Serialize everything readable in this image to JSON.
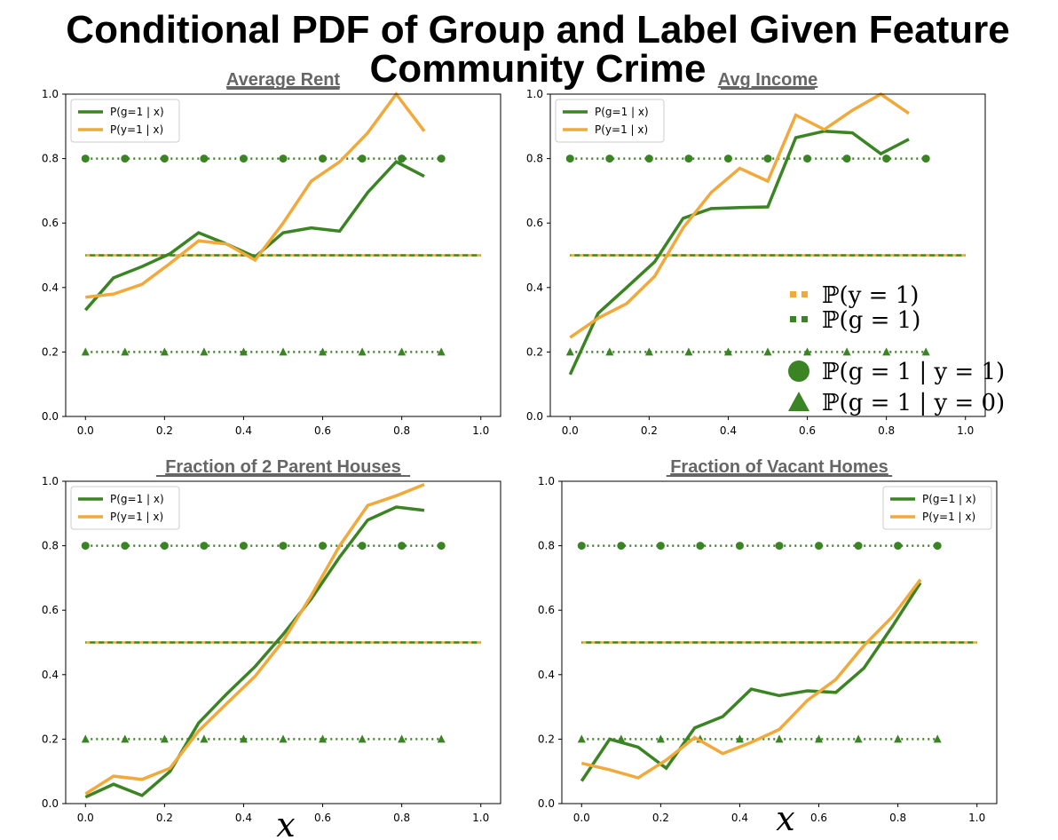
{
  "figure": {
    "title_line1": "Conditional PDF of Group and Label Given Feature",
    "title_line2": "Community Crime",
    "xlabel": "x",
    "colors": {
      "green": "#3a8424",
      "orange": "#f2a93b"
    },
    "math_legend": [
      {
        "marker": "square-orange",
        "text": "ℙ(y = 1)"
      },
      {
        "marker": "square-green",
        "text": "ℙ(g = 1)"
      },
      {
        "marker": "circle-green",
        "text": "ℙ(g = 1 | y = 1)"
      },
      {
        "marker": "triangle-green",
        "text": "ℙ(g = 1 | y = 0)"
      }
    ]
  },
  "chart_data": [
    {
      "type": "line",
      "title": "Average Rent",
      "xlim": [
        -0.05,
        1.05
      ],
      "ylim": [
        0.0,
        1.0
      ],
      "xticks": [
        "0.0",
        "0.2",
        "0.4",
        "0.6",
        "0.8",
        "1.0"
      ],
      "yticks": [
        "0.0",
        "0.2",
        "0.4",
        "0.6",
        "0.8",
        "1.0"
      ],
      "legend": [
        "P(g=1 | x)",
        "P(y=1 | x)"
      ],
      "legend_position": "top-left",
      "series": [
        {
          "name": "P(g=1 | x)",
          "x": [
            0.0,
            0.071,
            0.143,
            0.214,
            0.286,
            0.357,
            0.429,
            0.5,
            0.571,
            0.643,
            0.714,
            0.786,
            0.857
          ],
          "y": [
            0.33,
            0.43,
            0.465,
            0.505,
            0.57,
            0.535,
            0.495,
            0.57,
            0.585,
            0.575,
            0.695,
            0.79,
            0.745
          ]
        },
        {
          "name": "P(y=1 | x)",
          "x": [
            0.0,
            0.071,
            0.143,
            0.214,
            0.286,
            0.357,
            0.429,
            0.5,
            0.571,
            0.643,
            0.714,
            0.786,
            0.857
          ],
          "y": [
            0.37,
            0.38,
            0.41,
            0.475,
            0.545,
            0.535,
            0.485,
            0.6,
            0.73,
            0.79,
            0.88,
            1.0,
            0.885
          ]
        }
      ],
      "p_y1": 0.5,
      "p_g1": 0.5,
      "p_g1_y1": 0.8,
      "p_g1_y0": 0.2,
      "ref_x": [
        0.0,
        0.1,
        0.2,
        0.3,
        0.4,
        0.5,
        0.6,
        0.7,
        0.8,
        0.9
      ]
    },
    {
      "type": "line",
      "title": "Avg Income",
      "xlim": [
        -0.05,
        1.05
      ],
      "ylim": [
        0.0,
        1.0
      ],
      "xticks": [
        "0.0",
        "0.2",
        "0.4",
        "0.6",
        "0.8",
        "1.0"
      ],
      "yticks": [
        "0.0",
        "0.2",
        "0.4",
        "0.6",
        "0.8",
        "1.0"
      ],
      "legend": [
        "P(g=1 | x)",
        "P(y=1 | x)"
      ],
      "legend_position": "top-left",
      "series": [
        {
          "name": "P(g=1 | x)",
          "x": [
            0.0,
            0.071,
            0.143,
            0.214,
            0.286,
            0.357,
            0.429,
            0.5,
            0.571,
            0.643,
            0.714,
            0.786,
            0.857
          ],
          "y": [
            0.13,
            0.32,
            0.4,
            0.48,
            0.615,
            0.645,
            0.648,
            0.65,
            0.865,
            0.885,
            0.88,
            0.815,
            0.86
          ]
        },
        {
          "name": "P(y=1 | x)",
          "x": [
            0.0,
            0.071,
            0.143,
            0.214,
            0.286,
            0.357,
            0.429,
            0.5,
            0.571,
            0.643,
            0.714,
            0.786,
            0.857
          ],
          "y": [
            0.245,
            0.305,
            0.35,
            0.435,
            0.585,
            0.695,
            0.77,
            0.73,
            0.935,
            0.89,
            0.95,
            1.0,
            0.94
          ]
        }
      ],
      "p_y1": 0.5,
      "p_g1": 0.5,
      "p_g1_y1": 0.8,
      "p_g1_y0": 0.2,
      "ref_x": [
        0.0,
        0.1,
        0.2,
        0.3,
        0.4,
        0.5,
        0.6,
        0.7,
        0.8,
        0.9
      ]
    },
    {
      "type": "line",
      "title": "Fraction of 2 Parent Houses",
      "xlim": [
        -0.05,
        1.05
      ],
      "ylim": [
        0.0,
        1.0
      ],
      "xticks": [
        "0.0",
        "0.2",
        "0.4",
        "0.6",
        "0.8",
        "1.0"
      ],
      "yticks": [
        "0.0",
        "0.2",
        "0.4",
        "0.6",
        "0.8",
        "1.0"
      ],
      "legend": [
        "P(g=1 | x)",
        "P(y=1 | x)"
      ],
      "legend_position": "top-left",
      "series": [
        {
          "name": "P(g=1 | x)",
          "x": [
            0.0,
            0.071,
            0.143,
            0.214,
            0.286,
            0.357,
            0.429,
            0.5,
            0.571,
            0.643,
            0.714,
            0.786,
            0.857
          ],
          "y": [
            0.02,
            0.06,
            0.025,
            0.1,
            0.25,
            0.34,
            0.425,
            0.525,
            0.635,
            0.765,
            0.88,
            0.92,
            0.91
          ]
        },
        {
          "name": "P(y=1 | x)",
          "x": [
            0.0,
            0.071,
            0.143,
            0.214,
            0.286,
            0.357,
            0.429,
            0.5,
            0.571,
            0.643,
            0.714,
            0.786,
            0.857
          ],
          "y": [
            0.03,
            0.085,
            0.075,
            0.11,
            0.225,
            0.31,
            0.395,
            0.505,
            0.645,
            0.8,
            0.925,
            0.955,
            0.99
          ]
        }
      ],
      "p_y1": 0.5,
      "p_g1": 0.5,
      "p_g1_y1": 0.8,
      "p_g1_y0": 0.2,
      "ref_x": [
        0.0,
        0.1,
        0.2,
        0.3,
        0.4,
        0.5,
        0.6,
        0.7,
        0.8,
        0.9
      ]
    },
    {
      "type": "line",
      "title": "Fraction of Vacant Homes",
      "xlim": [
        -0.05,
        1.05
      ],
      "ylim": [
        0.0,
        1.0
      ],
      "xticks": [
        "0.0",
        "0.2",
        "0.4",
        "0.6",
        "0.8",
        "1.0"
      ],
      "yticks": [
        "0.0",
        "0.2",
        "0.4",
        "0.6",
        "0.8",
        "1.0"
      ],
      "legend": [
        "P(g=1 | x)",
        "P(y=1 | x)"
      ],
      "legend_position": "top-right",
      "series": [
        {
          "name": "P(g=1 | x)",
          "x": [
            0.0,
            0.071,
            0.143,
            0.214,
            0.286,
            0.357,
            0.429,
            0.5,
            0.571,
            0.643,
            0.714,
            0.786,
            0.857
          ],
          "y": [
            0.07,
            0.2,
            0.175,
            0.11,
            0.235,
            0.27,
            0.355,
            0.335,
            0.35,
            0.345,
            0.42,
            0.55,
            0.685
          ]
        },
        {
          "name": "P(y=1 | x)",
          "x": [
            0.0,
            0.071,
            0.143,
            0.214,
            0.286,
            0.357,
            0.429,
            0.5,
            0.571,
            0.643,
            0.714,
            0.786,
            0.857
          ],
          "y": [
            0.125,
            0.105,
            0.08,
            0.135,
            0.205,
            0.155,
            0.19,
            0.23,
            0.32,
            0.385,
            0.49,
            0.58,
            0.695
          ]
        }
      ],
      "p_y1": 0.5,
      "p_g1": 0.5,
      "p_g1_y1": 0.8,
      "p_g1_y0": 0.2,
      "ref_x": [
        0.0,
        0.1,
        0.2,
        0.3,
        0.4,
        0.5,
        0.6,
        0.7,
        0.8,
        0.9
      ]
    }
  ]
}
